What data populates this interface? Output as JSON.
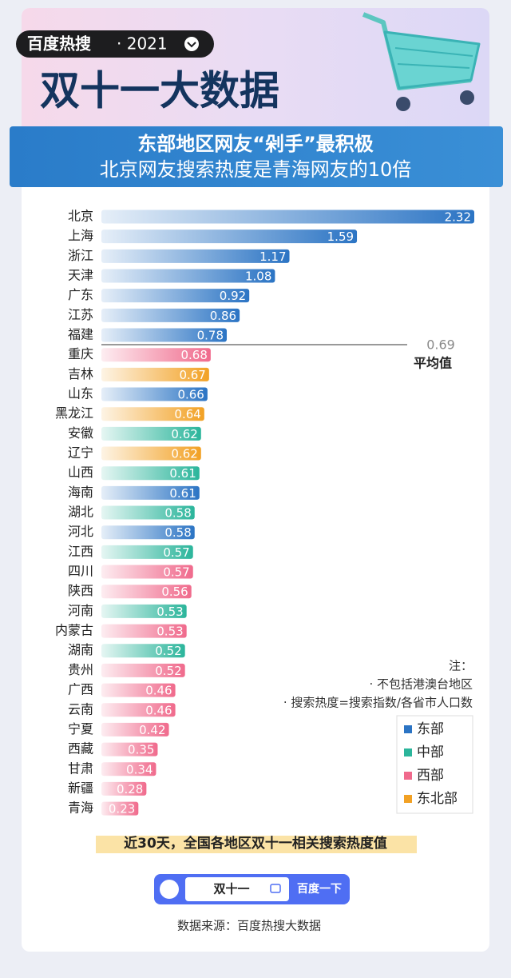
{
  "header": {
    "brand": "百度热搜",
    "year": "· 2021",
    "title": "双十一大数据",
    "subtitle": "东部地区网友“剁手”最积极",
    "subtitle2": "北京网友搜索热度是青海网友的10倍"
  },
  "chart_data": {
    "type": "hbar",
    "categories": [
      "北京",
      "上海",
      "浙江",
      "天津",
      "广东",
      "江苏",
      "福建",
      "重庆",
      "吉林",
      "山东",
      "黑龙江",
      "安徽",
      "辽宁",
      "山西",
      "海南",
      "湖北",
      "河北",
      "江西",
      "四川",
      "陕西",
      "河南",
      "内蒙古",
      "湖南",
      "贵州",
      "广西",
      "云南",
      "宁夏",
      "西藏",
      "甘肃",
      "新疆",
      "青海"
    ],
    "series": [
      {
        "name": "东部",
        "color": "#2b74c4",
        "values": [
          2.32,
          1.59,
          1.17,
          1.08,
          0.92,
          0.86,
          0.78,
          null,
          null,
          0.66,
          null,
          null,
          null,
          null,
          0.61,
          null,
          0.58,
          null,
          null,
          null,
          null,
          null,
          null,
          null,
          null,
          null,
          null,
          null,
          null,
          null,
          null
        ]
      },
      {
        "name": "中部",
        "color": "#2bb59b",
        "values": [
          null,
          null,
          null,
          null,
          null,
          null,
          null,
          null,
          null,
          null,
          null,
          0.62,
          null,
          0.61,
          null,
          0.58,
          null,
          0.57,
          null,
          null,
          0.53,
          null,
          0.52,
          null,
          null,
          null,
          null,
          null,
          null,
          null,
          null
        ]
      },
      {
        "name": "西部",
        "color": "#f06a8c",
        "values": [
          null,
          null,
          null,
          null,
          null,
          null,
          null,
          0.68,
          null,
          null,
          null,
          null,
          null,
          null,
          null,
          null,
          null,
          null,
          0.57,
          0.56,
          null,
          0.53,
          null,
          0.52,
          0.46,
          0.46,
          0.42,
          0.35,
          0.34,
          0.28,
          0.23
        ]
      },
      {
        "name": "东北部",
        "color": "#f2a124",
        "values": [
          null,
          null,
          null,
          null,
          null,
          null,
          null,
          null,
          0.67,
          null,
          0.64,
          null,
          0.62,
          null,
          null,
          null,
          null,
          null,
          null,
          null,
          null,
          null,
          null,
          null,
          null,
          null,
          null,
          null,
          null,
          null,
          null
        ]
      }
    ],
    "xlim": [
      0,
      2.32
    ],
    "average": {
      "value": 0.69,
      "label": "平均值"
    },
    "notes": [
      "注：",
      "· 不包括港澳台地区",
      "· 搜索热度=搜索指数/各省市人口数"
    ],
    "caption": "近30天，全国各地区双十一相关搜索热度值"
  },
  "footer": {
    "search_query": "双十一",
    "search_button": "百度一下",
    "source": "数据来源：百度热搜大数据"
  }
}
